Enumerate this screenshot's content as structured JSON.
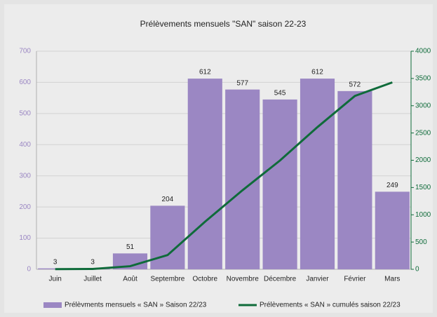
{
  "chart_data": {
    "type": "bar_line",
    "title": "Prélèvements mensuels \"SAN\" saison 22-23",
    "categories": [
      "Juin",
      "Juillet",
      "Août",
      "Septembre",
      "Octobre",
      "Novembre",
      "Décembre",
      "Janvier",
      "Février",
      "Mars"
    ],
    "series": [
      {
        "name": "Prélèvments mensuels « SAN » Saison 22/23",
        "type": "bar",
        "color": "#9b87c3",
        "axis": "y",
        "values": [
          3,
          3,
          51,
          204,
          612,
          577,
          545,
          612,
          572,
          249
        ]
      },
      {
        "name": "Prélèvements « SAN » cumulés saison 22/23",
        "type": "line",
        "color": "#0f6b3a",
        "axis": "y2",
        "values": [
          3,
          6,
          57,
          261,
          873,
          1450,
          1995,
          2607,
          3179,
          3428
        ]
      }
    ],
    "ylim": [
      0,
      700
    ],
    "yticks": [
      0,
      100,
      200,
      300,
      400,
      500,
      600,
      700
    ],
    "y2lim": [
      0,
      4000
    ],
    "y2ticks": [
      0,
      500,
      1000,
      1500,
      2000,
      2500,
      3000,
      3500,
      4000
    ],
    "grid": true,
    "legend": "bottom"
  }
}
